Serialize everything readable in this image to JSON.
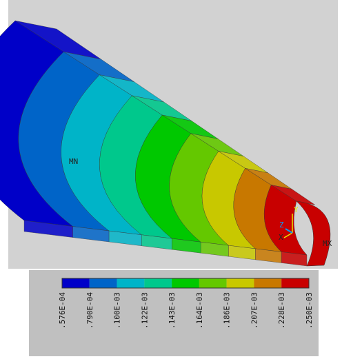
{
  "legend": {
    "colors": [
      "#0000c8",
      "#0064c8",
      "#00b4c8",
      "#00c88c",
      "#00c800",
      "#64c800",
      "#c8c800",
      "#c87800",
      "#c80000"
    ],
    "labels": [
      ".576E-04",
      ".790E-04",
      ".100E-03",
      ".122E-03",
      ".143E-03",
      ".164E-03",
      ".186E-03",
      ".207E-03",
      ".228E-03",
      ".250E-03"
    ]
  },
  "annotations": {
    "min": "MN",
    "max": "MX"
  },
  "triad": {
    "x": "X",
    "y": "Y",
    "z": "Z"
  }
}
